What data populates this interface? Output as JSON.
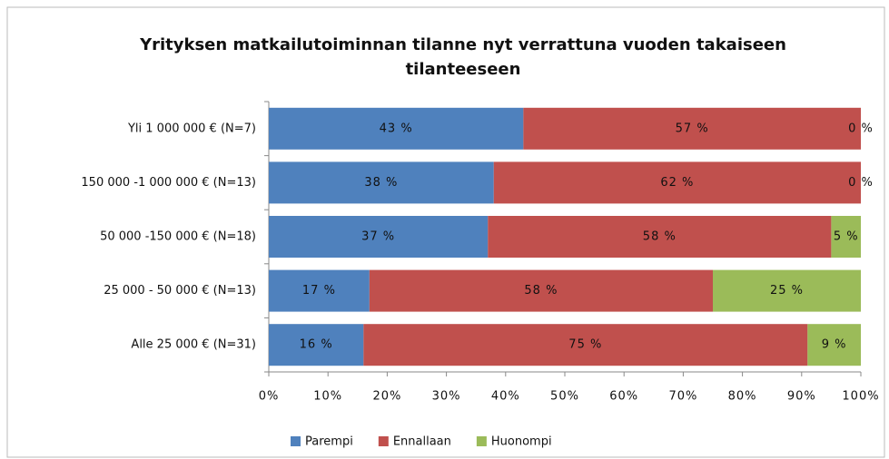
{
  "chart_data": {
    "type": "stacked-bar-horizontal",
    "title": "Yrityksen matkailutoiminnan tilanne nyt verrattuna vuoden takaiseen tilanteeseen",
    "categories": [
      "Yli 1 000 000 € (N=7)",
      "150 000 -1 000 000 € (N=13)",
      "50 000 -150 000 € (N=18)",
      "25 000 - 50 000 € (N=13)",
      "Alle 25 000 € (N=31)"
    ],
    "series": [
      {
        "name": "Parempi",
        "color": "#4f81bd",
        "values": [
          43,
          38,
          37,
          17,
          16
        ],
        "value_labels": [
          "43 %",
          "38 %",
          "37 %",
          "17 %",
          "16 %"
        ]
      },
      {
        "name": "Ennallaan",
        "color": "#c0504d",
        "values": [
          57,
          62,
          58,
          58,
          75
        ],
        "value_labels": [
          "57 %",
          "62 %",
          "58 %",
          "58 %",
          "75 %"
        ]
      },
      {
        "name": "Huonompi",
        "color": "#9bbb59",
        "values": [
          0,
          0,
          5,
          25,
          9
        ],
        "value_labels": [
          "0 %",
          "0 %",
          "5 %",
          "25 %",
          "9 %"
        ]
      }
    ],
    "xlim": [
      0,
      100
    ],
    "xticks": [
      {
        "value": 0,
        "label": "0%"
      },
      {
        "value": 10,
        "label": "10%"
      },
      {
        "value": 20,
        "label": "20%"
      },
      {
        "value": 30,
        "label": "30%"
      },
      {
        "value": 40,
        "label": "40%"
      },
      {
        "value": 50,
        "label": "50%"
      },
      {
        "value": 60,
        "label": "60%"
      },
      {
        "value": 70,
        "label": "70%"
      },
      {
        "value": 80,
        "label": "80%"
      },
      {
        "value": 90,
        "label": "90%"
      },
      {
        "value": 100,
        "label": "100%"
      }
    ],
    "legend": "bottom"
  }
}
